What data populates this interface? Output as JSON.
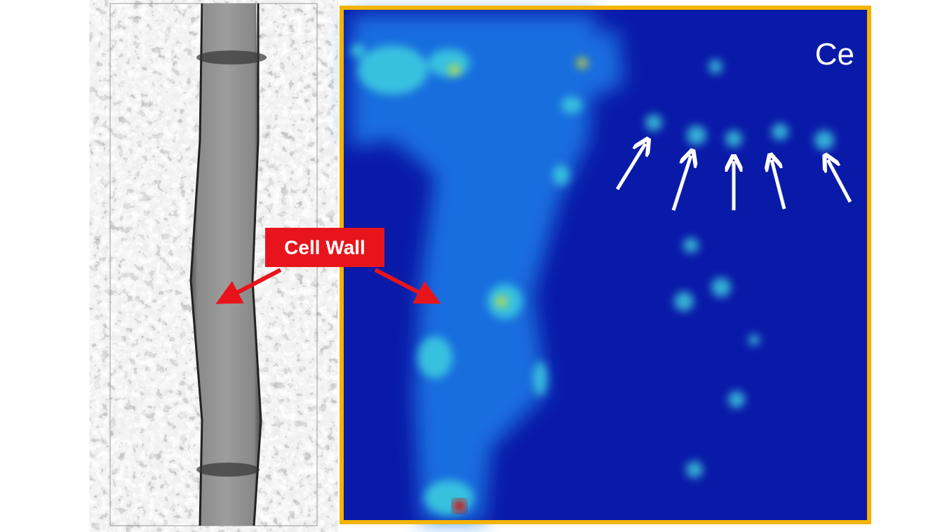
{
  "labels": {
    "callout": "Cell Wall",
    "element": "Ce"
  }
}
